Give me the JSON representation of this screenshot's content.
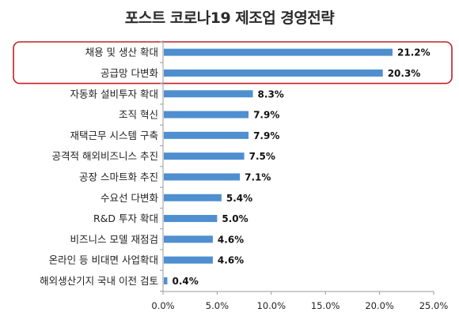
{
  "chart_data": {
    "type": "bar",
    "orientation": "horizontal",
    "title": "포스트 코로나19 제조업 경영전략",
    "categories": [
      "채용 및 생산 확대",
      "공급망 다변화",
      "자동화 설비투자 확대",
      "조직 혁신",
      "재택근무 시스템 구축",
      "공격적 해외비즈니스 추진",
      "공장 스마트화 추진",
      "수요선 다변화",
      "R&D 투자 확대",
      "비즈니스 모델 재점검",
      "온라인 등 비대면 사업확대",
      "해외생산기지 국내 이전 검토"
    ],
    "values": [
      21.2,
      20.3,
      8.3,
      7.9,
      7.9,
      7.5,
      7.1,
      5.4,
      5.0,
      4.6,
      4.6,
      0.4
    ],
    "value_labels": [
      "21.2%",
      "20.3%",
      "8.3%",
      "7.9%",
      "7.9%",
      "7.5%",
      "7.1%",
      "5.4%",
      "5.0%",
      "4.6%",
      "4.6%",
      "0.4%"
    ],
    "xlim": [
      0,
      25
    ],
    "x_ticks": [
      0,
      5,
      10,
      15,
      20,
      25
    ],
    "x_tick_labels": [
      "0.0%",
      "5.0%",
      "10.0%",
      "15.0%",
      "20.0%",
      "25.0%"
    ],
    "highlighted_categories": [
      0,
      1
    ],
    "grid": false,
    "legend": "none",
    "colors": {
      "bar": "#4f8fd0",
      "highlight_box": "#c0202a",
      "axis": "#9a9a9a"
    }
  }
}
